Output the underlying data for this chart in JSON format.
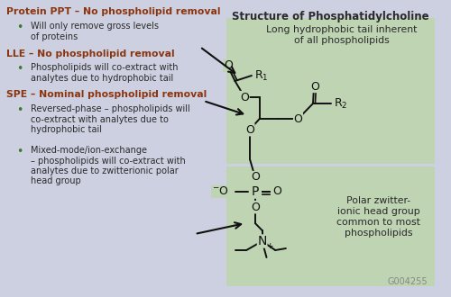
{
  "bg_color": "#cdd0e0",
  "right_panel_color": "#bed4b2",
  "title_color": "#2a2a2a",
  "heading_color": "#8B3510",
  "body_color": "#2a2a2a",
  "bullet_color": "#3a7a30",
  "arrow_color": "#111111",
  "chem_color": "#111111",
  "label_color": "#888888",
  "main_title": "Structure of Phosphatidylcholine",
  "heading1": "Protein PPT – No phospholipid removal",
  "bullet1a": "Will only remove gross levels",
  "bullet1b": "of proteins",
  "heading2": "LLE – No phospholipid removal",
  "bullet2a": "Phospholipids will co-extract with",
  "bullet2b": "analytes due to hydrophobic tail",
  "heading3": "SPE – Nominal phospholipid removal",
  "bullet3a1": "Reversed-phase – phospholipids will",
  "bullet3a2": "co-extract with analytes due to",
  "bullet3a3": "hydrophobic tail",
  "bullet3b1": "Mixed-mode/ion-exchange",
  "bullet3b2": "– phospholipids will co-extract with",
  "bullet3b3": "analytes due to zwitterionic polar",
  "bullet3b4": "head group",
  "label_top1": "Long hydrophobic tail inherent",
  "label_top2": "of all phospholipids",
  "label_bot1": "Polar zwitter-",
  "label_bot2": "ionic head group",
  "label_bot3": "common to most",
  "label_bot4": "phospholipids",
  "watermark": "G004255"
}
